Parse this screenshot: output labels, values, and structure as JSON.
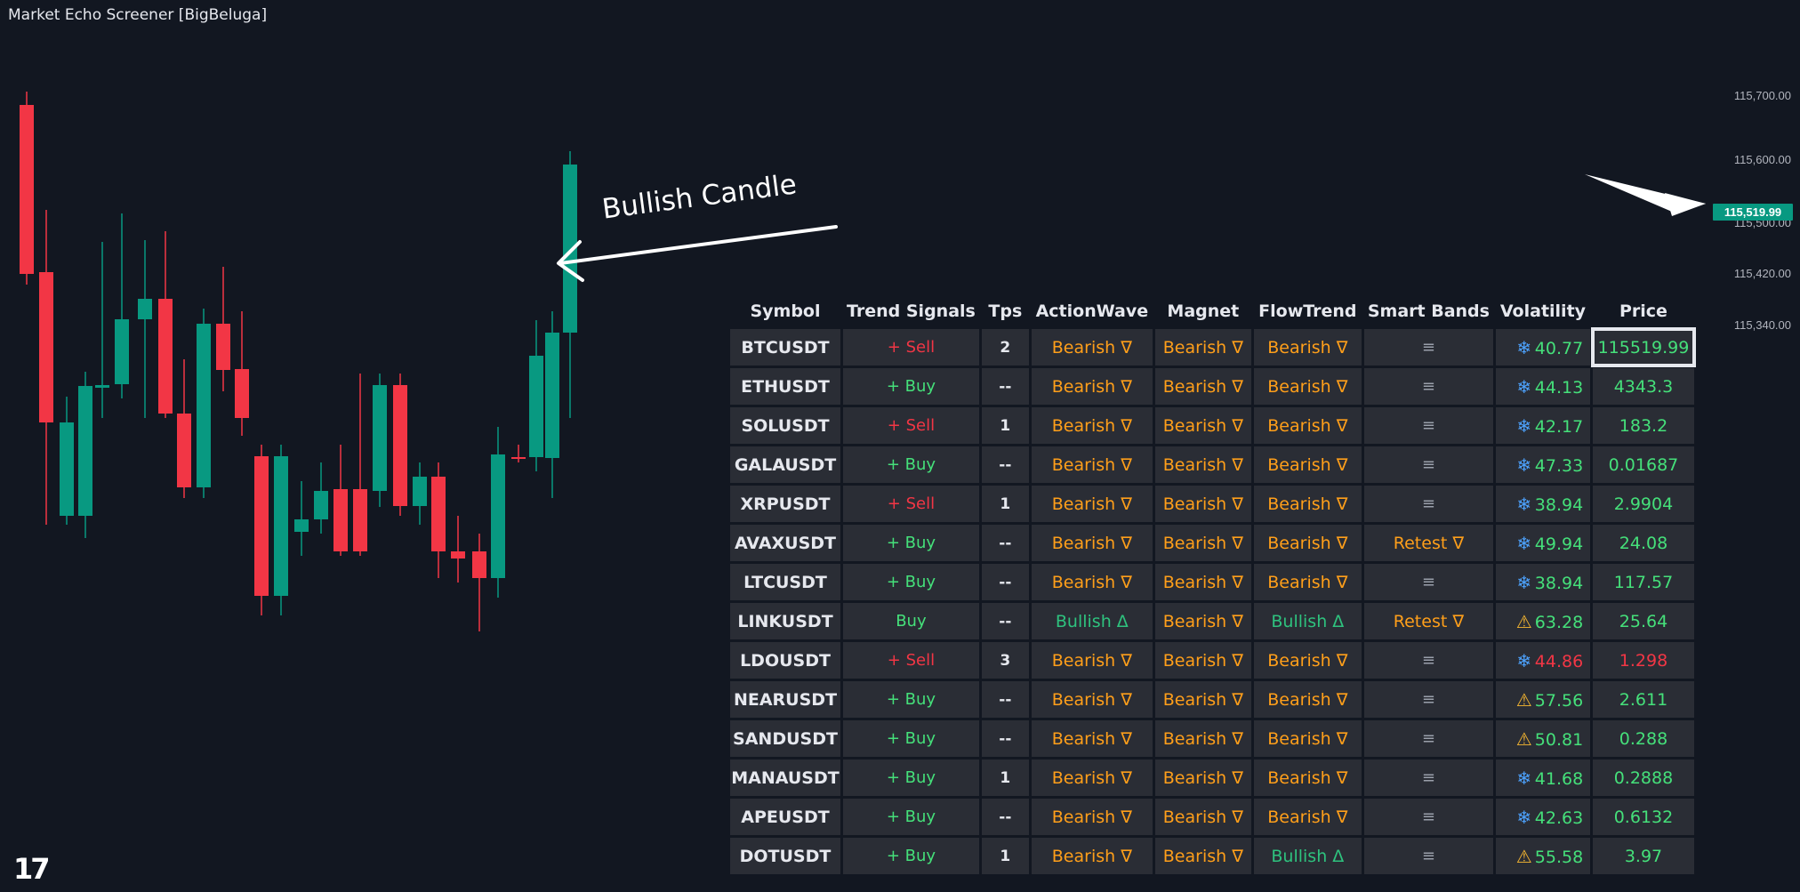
{
  "header": {
    "title": "Market Echo Screener [BigBeluga]"
  },
  "price_axis": {
    "labels": [
      "115,700.00",
      "115,600.00",
      "115,500.00",
      "115,420.00",
      "115,340.00"
    ],
    "current_price": "115,519.99"
  },
  "annotation": {
    "text": "Bullish Candle"
  },
  "logo": {
    "text": "17"
  },
  "colors": {
    "bull": "#089981",
    "bear": "#f23645",
    "background": "#121721"
  },
  "icons": {
    "low_volatility": "snowflake-icon",
    "high_volatility": "warning-icon"
  },
  "table": {
    "headers": [
      "Symbol",
      "Trend Signals",
      "Tps",
      "ActionWave",
      "Magnet",
      "FlowTrend",
      "Smart Bands",
      "Volatility",
      "Price"
    ],
    "rows": [
      {
        "symbol": "BTCUSDT",
        "signal": "+ Sell",
        "tps": "2",
        "action_wave": "Bearish ∇",
        "magnet": "Bearish ∇",
        "flow_trend": "Bearish ∇",
        "smart_bands": "≡",
        "vol_icon": "❄",
        "volatility": "40.77",
        "price": "115519.99"
      },
      {
        "symbol": "ETHUSDT",
        "signal": "+ Buy",
        "tps": "--",
        "action_wave": "Bearish ∇",
        "magnet": "Bearish ∇",
        "flow_trend": "Bearish ∇",
        "smart_bands": "≡",
        "vol_icon": "❄",
        "volatility": "44.13",
        "price": "4343.3"
      },
      {
        "symbol": "SOLUSDT",
        "signal": "+ Sell",
        "tps": "1",
        "action_wave": "Bearish ∇",
        "magnet": "Bearish ∇",
        "flow_trend": "Bearish ∇",
        "smart_bands": "≡",
        "vol_icon": "❄",
        "volatility": "42.17",
        "price": "183.2"
      },
      {
        "symbol": "GALAUSDT",
        "signal": "+ Buy",
        "tps": "--",
        "action_wave": "Bearish ∇",
        "magnet": "Bearish ∇",
        "flow_trend": "Bearish ∇",
        "smart_bands": "≡",
        "vol_icon": "❄",
        "volatility": "47.33",
        "price": "0.01687"
      },
      {
        "symbol": "XRPUSDT",
        "signal": "+ Sell",
        "tps": "1",
        "action_wave": "Bearish ∇",
        "magnet": "Bearish ∇",
        "flow_trend": "Bearish ∇",
        "smart_bands": "≡",
        "vol_icon": "❄",
        "volatility": "38.94",
        "price": "2.9904"
      },
      {
        "symbol": "AVAXUSDT",
        "signal": "+ Buy",
        "tps": "--",
        "action_wave": "Bearish ∇",
        "magnet": "Bearish ∇",
        "flow_trend": "Bearish ∇",
        "smart_bands": "Retest ∇",
        "vol_icon": "❄",
        "volatility": "49.94",
        "price": "24.08"
      },
      {
        "symbol": "LTCUSDT",
        "signal": "+ Buy",
        "tps": "--",
        "action_wave": "Bearish ∇",
        "magnet": "Bearish ∇",
        "flow_trend": "Bearish ∇",
        "smart_bands": "≡",
        "vol_icon": "❄",
        "volatility": "38.94",
        "price": "117.57"
      },
      {
        "symbol": "LINKUSDT",
        "signal": "Buy",
        "tps": "--",
        "action_wave": "Bullish Δ",
        "magnet": "Bearish ∇",
        "flow_trend": "Bullish Δ",
        "smart_bands": "Retest ∇",
        "vol_icon": "⚠",
        "volatility": "63.28",
        "price": "25.64"
      },
      {
        "symbol": "LDOUSDT",
        "signal": "+ Sell",
        "tps": "3",
        "action_wave": "Bearish ∇",
        "magnet": "Bearish ∇",
        "flow_trend": "Bearish ∇",
        "smart_bands": "≡",
        "vol_icon": "❄",
        "volatility": "44.86",
        "price": "1.298"
      },
      {
        "symbol": "NEARUSDT",
        "signal": "+ Buy",
        "tps": "--",
        "action_wave": "Bearish ∇",
        "magnet": "Bearish ∇",
        "flow_trend": "Bearish ∇",
        "smart_bands": "≡",
        "vol_icon": "⚠",
        "volatility": "57.56",
        "price": "2.611"
      },
      {
        "symbol": "SANDUSDT",
        "signal": "+ Buy",
        "tps": "--",
        "action_wave": "Bearish ∇",
        "magnet": "Bearish ∇",
        "flow_trend": "Bearish ∇",
        "smart_bands": "≡",
        "vol_icon": "⚠",
        "volatility": "50.81",
        "price": "0.288"
      },
      {
        "symbol": "MANAUSDT",
        "signal": "+ Buy",
        "tps": "1",
        "action_wave": "Bearish ∇",
        "magnet": "Bearish ∇",
        "flow_trend": "Bearish ∇",
        "smart_bands": "≡",
        "vol_icon": "❄",
        "volatility": "41.68",
        "price": "0.2888"
      },
      {
        "symbol": "APEUSDT",
        "signal": "+ Buy",
        "tps": "--",
        "action_wave": "Bearish ∇",
        "magnet": "Bearish ∇",
        "flow_trend": "Bearish ∇",
        "smart_bands": "≡",
        "vol_icon": "❄",
        "volatility": "42.63",
        "price": "0.6132"
      },
      {
        "symbol": "DOTUSDT",
        "signal": "+ Buy",
        "tps": "1",
        "action_wave": "Bearish ∇",
        "magnet": "Bearish ∇",
        "flow_trend": "Bullish Δ",
        "smart_bands": "≡",
        "vol_icon": "⚠",
        "volatility": "55.58",
        "price": "3.97"
      }
    ]
  }
}
